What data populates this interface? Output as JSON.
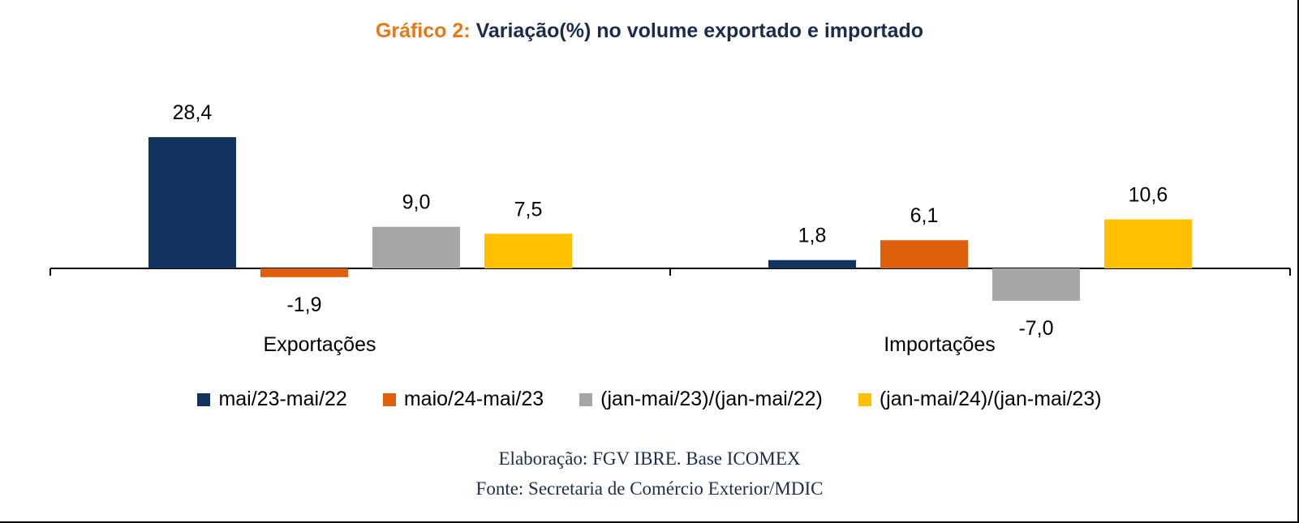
{
  "title": {
    "prefix": "Gráfico 2:",
    "text": "Variação(%) no volume exportado e importado"
  },
  "chart_data": {
    "type": "bar",
    "categories": [
      "Exportações",
      "Importações"
    ],
    "series": [
      {
        "name": "mai/23-mai/22",
        "color": "#12335e",
        "values": [
          28.4,
          1.8
        ],
        "labels": [
          "28,4",
          "1,8"
        ]
      },
      {
        "name": "maio/24-mai/23",
        "color": "#e05f0c",
        "values": [
          -1.9,
          6.1
        ],
        "labels": [
          "-1,9",
          "6,1"
        ]
      },
      {
        "name": "(jan-mai/23)/(jan-mai/22)",
        "color": "#a6a6a6",
        "values": [
          9.0,
          -7.0
        ],
        "labels": [
          "9,0",
          "-7,0"
        ]
      },
      {
        "name": "(jan-mai/24)/(jan-mai/23)",
        "color": "#ffc000",
        "values": [
          7.5,
          10.6
        ],
        "labels": [
          "7,5",
          "10,6"
        ]
      }
    ],
    "legend_position": "bottom",
    "grid": false
  },
  "footer": {
    "line1": "Elaboração: FGV IBRE. Base ICOMEX",
    "line2": "Fonte: Secretaria de Comércio Exterior/MDIC"
  }
}
